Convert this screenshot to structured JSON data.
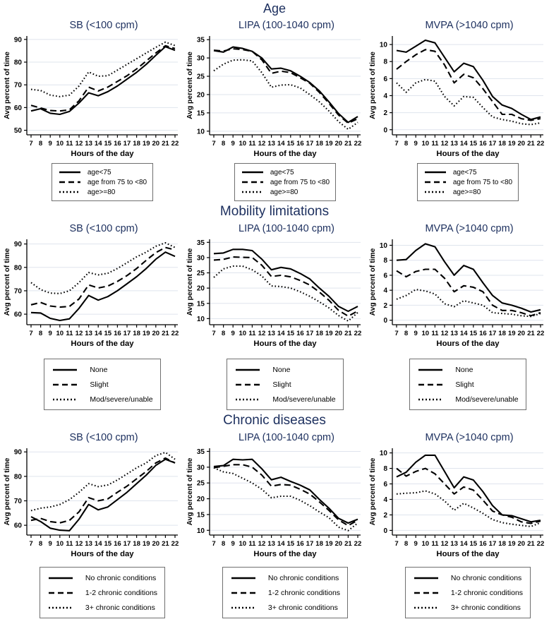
{
  "figure_title_rows": [
    "Age",
    "Mobility limitations",
    "Chronic diseases"
  ],
  "colors": {
    "title_navy": "#1c2f5e",
    "grid": "#dfe4ed",
    "axis": "#000000",
    "series_line": "#000000",
    "legend_border": "#6f6f6f",
    "background": "#ffffff"
  },
  "sections": [
    {
      "title": "Age"
    },
    {
      "title": "Mobility limitations"
    },
    {
      "title": "Chronic diseases"
    }
  ],
  "chart_data": [
    {
      "section": 0,
      "type": "line",
      "title": "SB (<100 cpm)",
      "xlabel": "Hours of the day",
      "ylabel": "Avg percent of time",
      "x": [
        7,
        8,
        9,
        10,
        11,
        12,
        13,
        14,
        15,
        16,
        17,
        18,
        19,
        20,
        21,
        22
      ],
      "yticks": [
        50,
        60,
        70,
        80,
        90
      ],
      "ylim": [
        48,
        91.5
      ],
      "series": [
        {
          "name": "age<75",
          "style": "solid",
          "values": [
            58.5,
            59.5,
            57.5,
            57.0,
            58.3,
            62.0,
            66.5,
            65.2,
            67.0,
            69.5,
            72.5,
            75.5,
            79.0,
            83.0,
            86.8,
            85.2
          ]
        },
        {
          "name": "age from 75 to <80",
          "style": "dashed",
          "values": [
            61.0,
            59.8,
            58.7,
            58.5,
            59.0,
            63.0,
            69.0,
            67.3,
            69.0,
            71.5,
            74.0,
            77.0,
            80.5,
            84.0,
            87.2,
            86.0
          ]
        },
        {
          "name": "age>=80",
          "style": "dotted",
          "values": [
            68.0,
            67.5,
            65.5,
            64.8,
            65.5,
            69.5,
            75.7,
            73.8,
            74.0,
            76.5,
            79.0,
            81.5,
            84.0,
            86.5,
            88.8,
            87.3
          ]
        }
      ]
    },
    {
      "section": 0,
      "type": "line",
      "title": "LIPA (100-1040 cpm)",
      "xlabel": "Hours of the day",
      "ylabel": "Avg percent of time",
      "x": [
        7,
        8,
        9,
        10,
        11,
        12,
        13,
        14,
        15,
        16,
        17,
        18,
        19,
        20,
        21,
        22
      ],
      "yticks": [
        10,
        15,
        20,
        25,
        30,
        35
      ],
      "ylim": [
        9,
        36
      ],
      "series": [
        {
          "name": "age<75",
          "style": "solid",
          "values": [
            32.0,
            31.6,
            33.0,
            32.6,
            31.8,
            30.0,
            27.0,
            27.2,
            26.5,
            25.0,
            23.3,
            21.0,
            18.0,
            14.8,
            12.4,
            14.0
          ]
        },
        {
          "name": "age from 75 to <80",
          "style": "dashed",
          "values": [
            32.1,
            31.9,
            32.5,
            32.3,
            31.8,
            29.5,
            25.8,
            26.4,
            26.0,
            24.6,
            23.1,
            20.6,
            17.6,
            14.4,
            12.2,
            13.4
          ]
        },
        {
          "name": "age>=80",
          "style": "dotted",
          "values": [
            26.5,
            28.3,
            29.4,
            29.5,
            29.2,
            26.0,
            22.0,
            22.6,
            22.7,
            21.8,
            20.0,
            18.0,
            15.5,
            12.6,
            10.5,
            12.4
          ]
        }
      ]
    },
    {
      "section": 0,
      "type": "line",
      "title": "MVPA (>1040 cpm)",
      "xlabel": "Hours of the day",
      "ylabel": "Avg percent of time",
      "x": [
        7,
        8,
        9,
        10,
        11,
        12,
        13,
        14,
        15,
        16,
        17,
        18,
        19,
        20,
        21,
        22
      ],
      "yticks": [
        0,
        2,
        4,
        6,
        8,
        10
      ],
      "ylim": [
        -0.6,
        11
      ],
      "series": [
        {
          "name": "age<75",
          "style": "solid",
          "values": [
            9.3,
            9.1,
            9.8,
            10.5,
            10.2,
            8.5,
            6.8,
            7.8,
            7.4,
            5.8,
            3.9,
            2.9,
            2.5,
            1.8,
            1.2,
            1.5
          ]
        },
        {
          "name": "age from 75 to <80",
          "style": "dashed",
          "values": [
            7.1,
            8.0,
            8.8,
            9.4,
            9.2,
            7.6,
            5.5,
            6.5,
            6.1,
            4.8,
            3.3,
            1.8,
            1.8,
            1.3,
            1.1,
            1.3
          ]
        },
        {
          "name": "age>=80",
          "style": "dotted",
          "values": [
            5.5,
            4.4,
            5.5,
            5.9,
            5.7,
            3.9,
            2.8,
            3.9,
            3.8,
            2.6,
            1.5,
            1.2,
            1.0,
            0.7,
            0.6,
            0.8
          ]
        }
      ]
    },
    {
      "section": 1,
      "type": "line",
      "title": "SB (<100 cpm)",
      "xlabel": "Hours of the day",
      "ylabel": "Avg percent of time",
      "x": [
        7,
        8,
        9,
        10,
        11,
        12,
        13,
        14,
        15,
        16,
        17,
        18,
        19,
        20,
        21,
        22
      ],
      "yticks": [
        60,
        70,
        80,
        90
      ],
      "ylim": [
        55.5,
        92
      ],
      "series": [
        {
          "name": "None",
          "style": "solid",
          "values": [
            60.7,
            60.5,
            58.2,
            57.3,
            58.0,
            62.5,
            68.0,
            66.0,
            67.5,
            70.0,
            73.0,
            76.0,
            79.5,
            83.5,
            86.5,
            84.7
          ]
        },
        {
          "name": "Slight",
          "style": "dashed",
          "values": [
            64.0,
            65.0,
            63.5,
            63.0,
            63.3,
            66.5,
            72.5,
            71.2,
            72.0,
            74.0,
            76.5,
            79.5,
            83.0,
            86.3,
            88.5,
            87.5
          ]
        },
        {
          "name": "Mod/severe/unable",
          "style": "dotted",
          "values": [
            73.5,
            70.5,
            69.0,
            68.8,
            70.0,
            73.5,
            77.8,
            76.8,
            77.5,
            79.5,
            82.0,
            84.5,
            86.5,
            89.0,
            90.5,
            88.5
          ]
        }
      ]
    },
    {
      "section": 1,
      "type": "line",
      "title": "LIPA (100-1040 cpm)",
      "xlabel": "Hours of the day",
      "ylabel": "Avg percent of time",
      "x": [
        7,
        8,
        9,
        10,
        11,
        12,
        13,
        14,
        15,
        16,
        17,
        18,
        19,
        20,
        21,
        22
      ],
      "yticks": [
        10,
        15,
        20,
        25,
        30,
        35
      ],
      "ylim": [
        8,
        36
      ],
      "series": [
        {
          "name": "None",
          "style": "solid",
          "values": [
            31.3,
            31.5,
            32.7,
            32.7,
            32.3,
            29.5,
            26.0,
            26.8,
            26.3,
            24.8,
            23.0,
            20.0,
            17.3,
            14.0,
            12.4,
            14.0
          ]
        },
        {
          "name": "Slight",
          "style": "dashed",
          "values": [
            29.2,
            29.4,
            30.2,
            30.1,
            30.0,
            27.5,
            23.8,
            24.2,
            23.7,
            22.5,
            21.0,
            18.7,
            16.0,
            12.7,
            10.8,
            12.5
          ]
        },
        {
          "name": "Mod/severe/unable",
          "style": "dotted",
          "values": [
            23.5,
            26.3,
            27.2,
            27.2,
            26.0,
            24.0,
            20.7,
            20.5,
            20.0,
            18.8,
            17.3,
            15.5,
            13.5,
            11.0,
            9.2,
            12.0
          ]
        }
      ]
    },
    {
      "section": 1,
      "type": "line",
      "title": "MVPA (>1040 cpm)",
      "xlabel": "Hours of the day",
      "ylabel": "Avg percent of time",
      "x": [
        7,
        8,
        9,
        10,
        11,
        12,
        13,
        14,
        15,
        16,
        17,
        18,
        19,
        20,
        21,
        22
      ],
      "yticks": [
        0,
        2,
        4,
        6,
        8,
        10
      ],
      "ylim": [
        -0.6,
        10.8
      ],
      "series": [
        {
          "name": "None",
          "style": "solid",
          "values": [
            8.0,
            8.1,
            9.3,
            10.2,
            9.8,
            7.8,
            6.0,
            7.3,
            6.8,
            5.0,
            3.3,
            2.3,
            2.0,
            1.6,
            1.1,
            1.4
          ]
        },
        {
          "name": "Slight",
          "style": "dashed",
          "values": [
            6.6,
            5.8,
            6.5,
            6.8,
            6.8,
            5.6,
            3.8,
            4.6,
            4.4,
            3.8,
            2.0,
            1.3,
            1.3,
            1.0,
            0.6,
            1.0
          ]
        },
        {
          "name": "Mod/severe/unable",
          "style": "dotted",
          "values": [
            2.8,
            3.3,
            4.1,
            3.9,
            3.5,
            2.2,
            1.8,
            2.6,
            2.3,
            2.0,
            1.0,
            0.9,
            0.8,
            0.6,
            0.5,
            0.9
          ]
        }
      ]
    },
    {
      "section": 2,
      "type": "line",
      "title": "SB (<100 cpm)",
      "xlabel": "Hours of the day",
      "ylabel": "Avg percent of time",
      "x": [
        7,
        8,
        9,
        10,
        11,
        12,
        13,
        14,
        15,
        16,
        17,
        18,
        19,
        20,
        21,
        22
      ],
      "yticks": [
        60,
        70,
        80,
        90
      ],
      "ylim": [
        56,
        91.5
      ],
      "series": [
        {
          "name": "No chronic conditions",
          "style": "solid",
          "values": [
            63.5,
            61.5,
            58.8,
            58.0,
            57.8,
            62.5,
            68.5,
            66.3,
            67.5,
            70.5,
            73.5,
            77.0,
            80.5,
            84.5,
            87.0,
            85.5
          ]
        },
        {
          "name": "1-2 chronic conditions",
          "style": "dashed",
          "values": [
            62.0,
            62.8,
            61.5,
            61.0,
            62.0,
            65.5,
            71.3,
            70.0,
            70.8,
            73.5,
            76.0,
            79.0,
            82.0,
            85.5,
            87.5,
            85.5
          ]
        },
        {
          "name": "3+ chronic conditions",
          "style": "dotted",
          "values": [
            66.0,
            67.0,
            67.5,
            68.5,
            70.5,
            73.5,
            77.0,
            75.8,
            76.5,
            78.5,
            81.0,
            83.5,
            85.5,
            88.5,
            89.8,
            87.0
          ]
        }
      ]
    },
    {
      "section": 2,
      "type": "line",
      "title": "LIPA (100-1040 cpm)",
      "xlabel": "Hours of the day",
      "ylabel": "Avg percent of time",
      "x": [
        7,
        8,
        9,
        10,
        11,
        12,
        13,
        14,
        15,
        16,
        17,
        18,
        19,
        20,
        21,
        22
      ],
      "yticks": [
        10,
        15,
        20,
        25,
        30,
        35
      ],
      "ylim": [
        8.5,
        36
      ],
      "series": [
        {
          "name": "No chronic conditions",
          "style": "solid",
          "values": [
            30.2,
            30.5,
            32.5,
            32.3,
            32.5,
            29.5,
            26.0,
            26.8,
            25.5,
            24.3,
            22.8,
            19.8,
            17.0,
            13.8,
            12.3,
            13.5
          ]
        },
        {
          "name": "1-2 chronic conditions",
          "style": "dashed",
          "values": [
            29.8,
            30.3,
            30.8,
            30.8,
            30.0,
            27.5,
            24.0,
            24.5,
            24.3,
            23.0,
            21.5,
            19.0,
            16.3,
            13.3,
            11.5,
            13.2
          ]
        },
        {
          "name": "3+ chronic conditions",
          "style": "dotted",
          "values": [
            29.8,
            28.5,
            28.0,
            26.5,
            25.0,
            23.0,
            20.3,
            20.8,
            20.8,
            19.5,
            17.8,
            15.8,
            14.0,
            11.0,
            9.9,
            12.3
          ]
        }
      ]
    },
    {
      "section": 2,
      "type": "line",
      "title": "MVPA (>1040 cpm)",
      "xlabel": "Hours of the day",
      "ylabel": "Avg percent of time",
      "x": [
        7,
        8,
        9,
        10,
        11,
        12,
        13,
        14,
        15,
        16,
        17,
        18,
        19,
        20,
        21,
        22
      ],
      "yticks": [
        0,
        2,
        4,
        6,
        8,
        10
      ],
      "ylim": [
        -0.6,
        10.6
      ],
      "series": [
        {
          "name": "No chronic conditions",
          "style": "solid",
          "values": [
            6.9,
            7.5,
            8.8,
            9.7,
            9.7,
            7.6,
            5.5,
            6.9,
            6.5,
            5.0,
            3.2,
            2.0,
            1.9,
            1.5,
            1.1,
            1.3
          ]
        },
        {
          "name": "1-2 chronic conditions",
          "style": "dashed",
          "values": [
            8.0,
            7.0,
            7.6,
            8.0,
            7.3,
            6.0,
            4.7,
            5.6,
            5.2,
            3.9,
            2.5,
            2.0,
            1.7,
            1.1,
            0.9,
            1.2
          ]
        },
        {
          "name": "3+ chronic conditions",
          "style": "dotted",
          "values": [
            4.7,
            4.8,
            4.85,
            5.1,
            4.7,
            3.8,
            2.6,
            3.5,
            2.9,
            2.2,
            1.4,
            1.0,
            0.8,
            0.65,
            0.5,
            1.0
          ]
        }
      ]
    }
  ]
}
